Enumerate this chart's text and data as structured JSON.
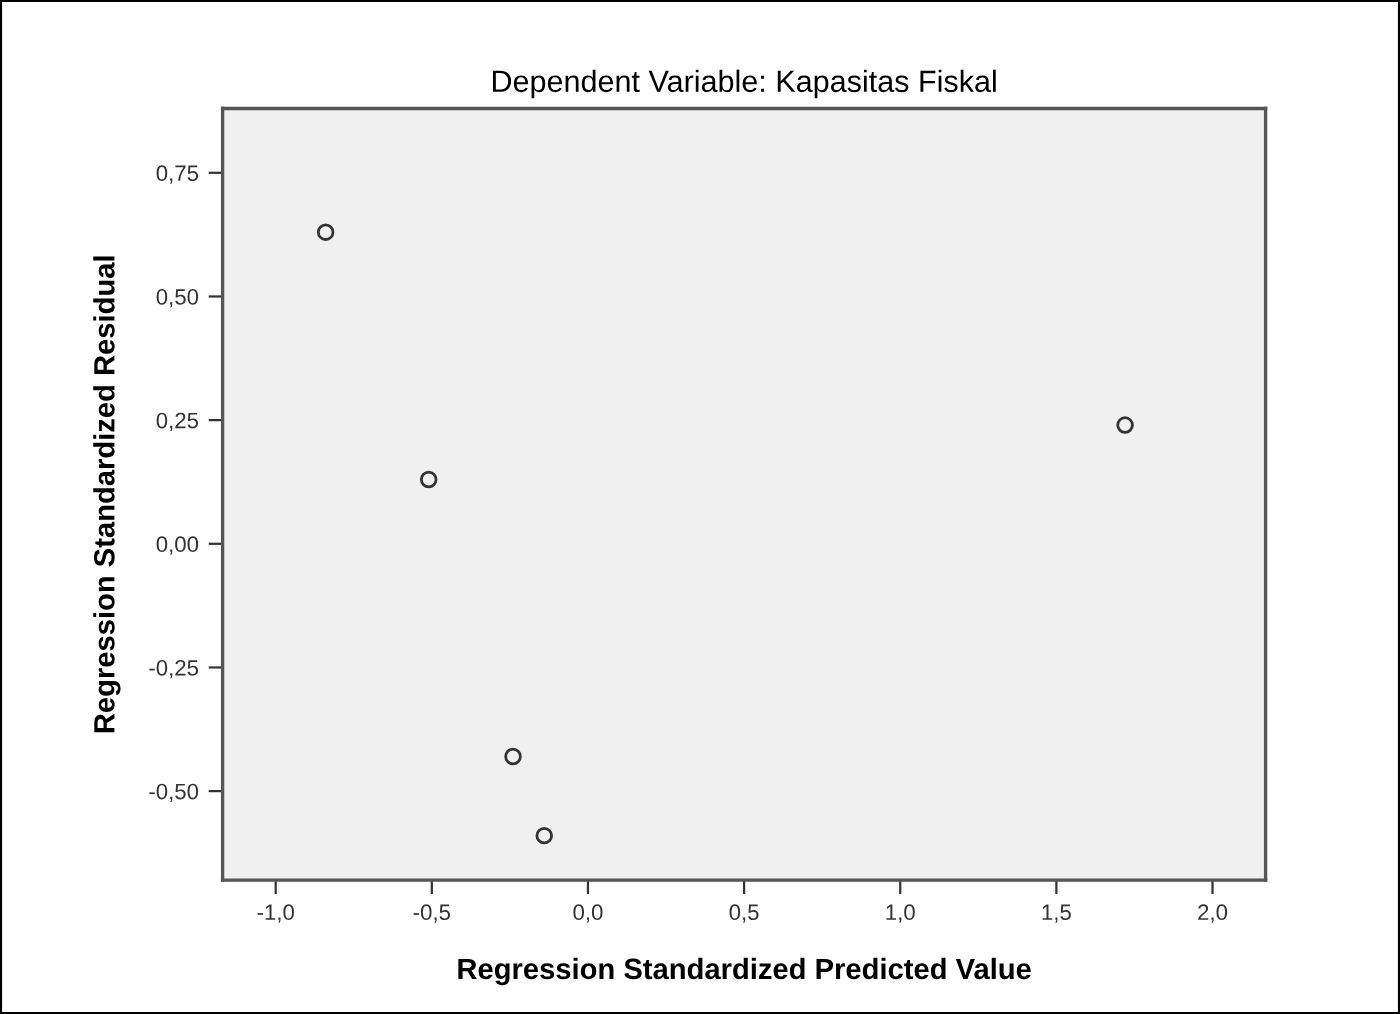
{
  "chart_data": {
    "type": "scatter",
    "title": "Dependent Variable: Kapasitas Fiskal",
    "xlabel": "Regression Standardized Predicted Value",
    "ylabel": "Regression Standardized Residual",
    "x": [
      -0.84,
      -0.51,
      -0.24,
      -0.14,
      1.72
    ],
    "values": [
      0.63,
      0.13,
      -0.43,
      -0.59,
      0.24
    ],
    "color": "#333333",
    "marker": "circle",
    "xlim": [
      -1.17,
      2.17
    ],
    "ylim": [
      -0.68,
      0.88
    ],
    "xticks": [
      {
        "value": -1.0,
        "label": "-1,0"
      },
      {
        "value": -0.5,
        "label": "-0,5"
      },
      {
        "value": 0.0,
        "label": "0,0"
      },
      {
        "value": 0.5,
        "label": "0,5"
      },
      {
        "value": 1.0,
        "label": "1,0"
      },
      {
        "value": 1.5,
        "label": "1,5"
      },
      {
        "value": 2.0,
        "label": "2,0"
      }
    ],
    "yticks": [
      {
        "value": -0.5,
        "label": "-0,50"
      },
      {
        "value": -0.25,
        "label": "-0,25"
      },
      {
        "value": 0.0,
        "label": "0,00"
      },
      {
        "value": 0.25,
        "label": "0,25"
      },
      {
        "value": 0.5,
        "label": "0,50"
      },
      {
        "value": 0.75,
        "label": "0,75"
      }
    ],
    "grid": false,
    "legend": false
  }
}
